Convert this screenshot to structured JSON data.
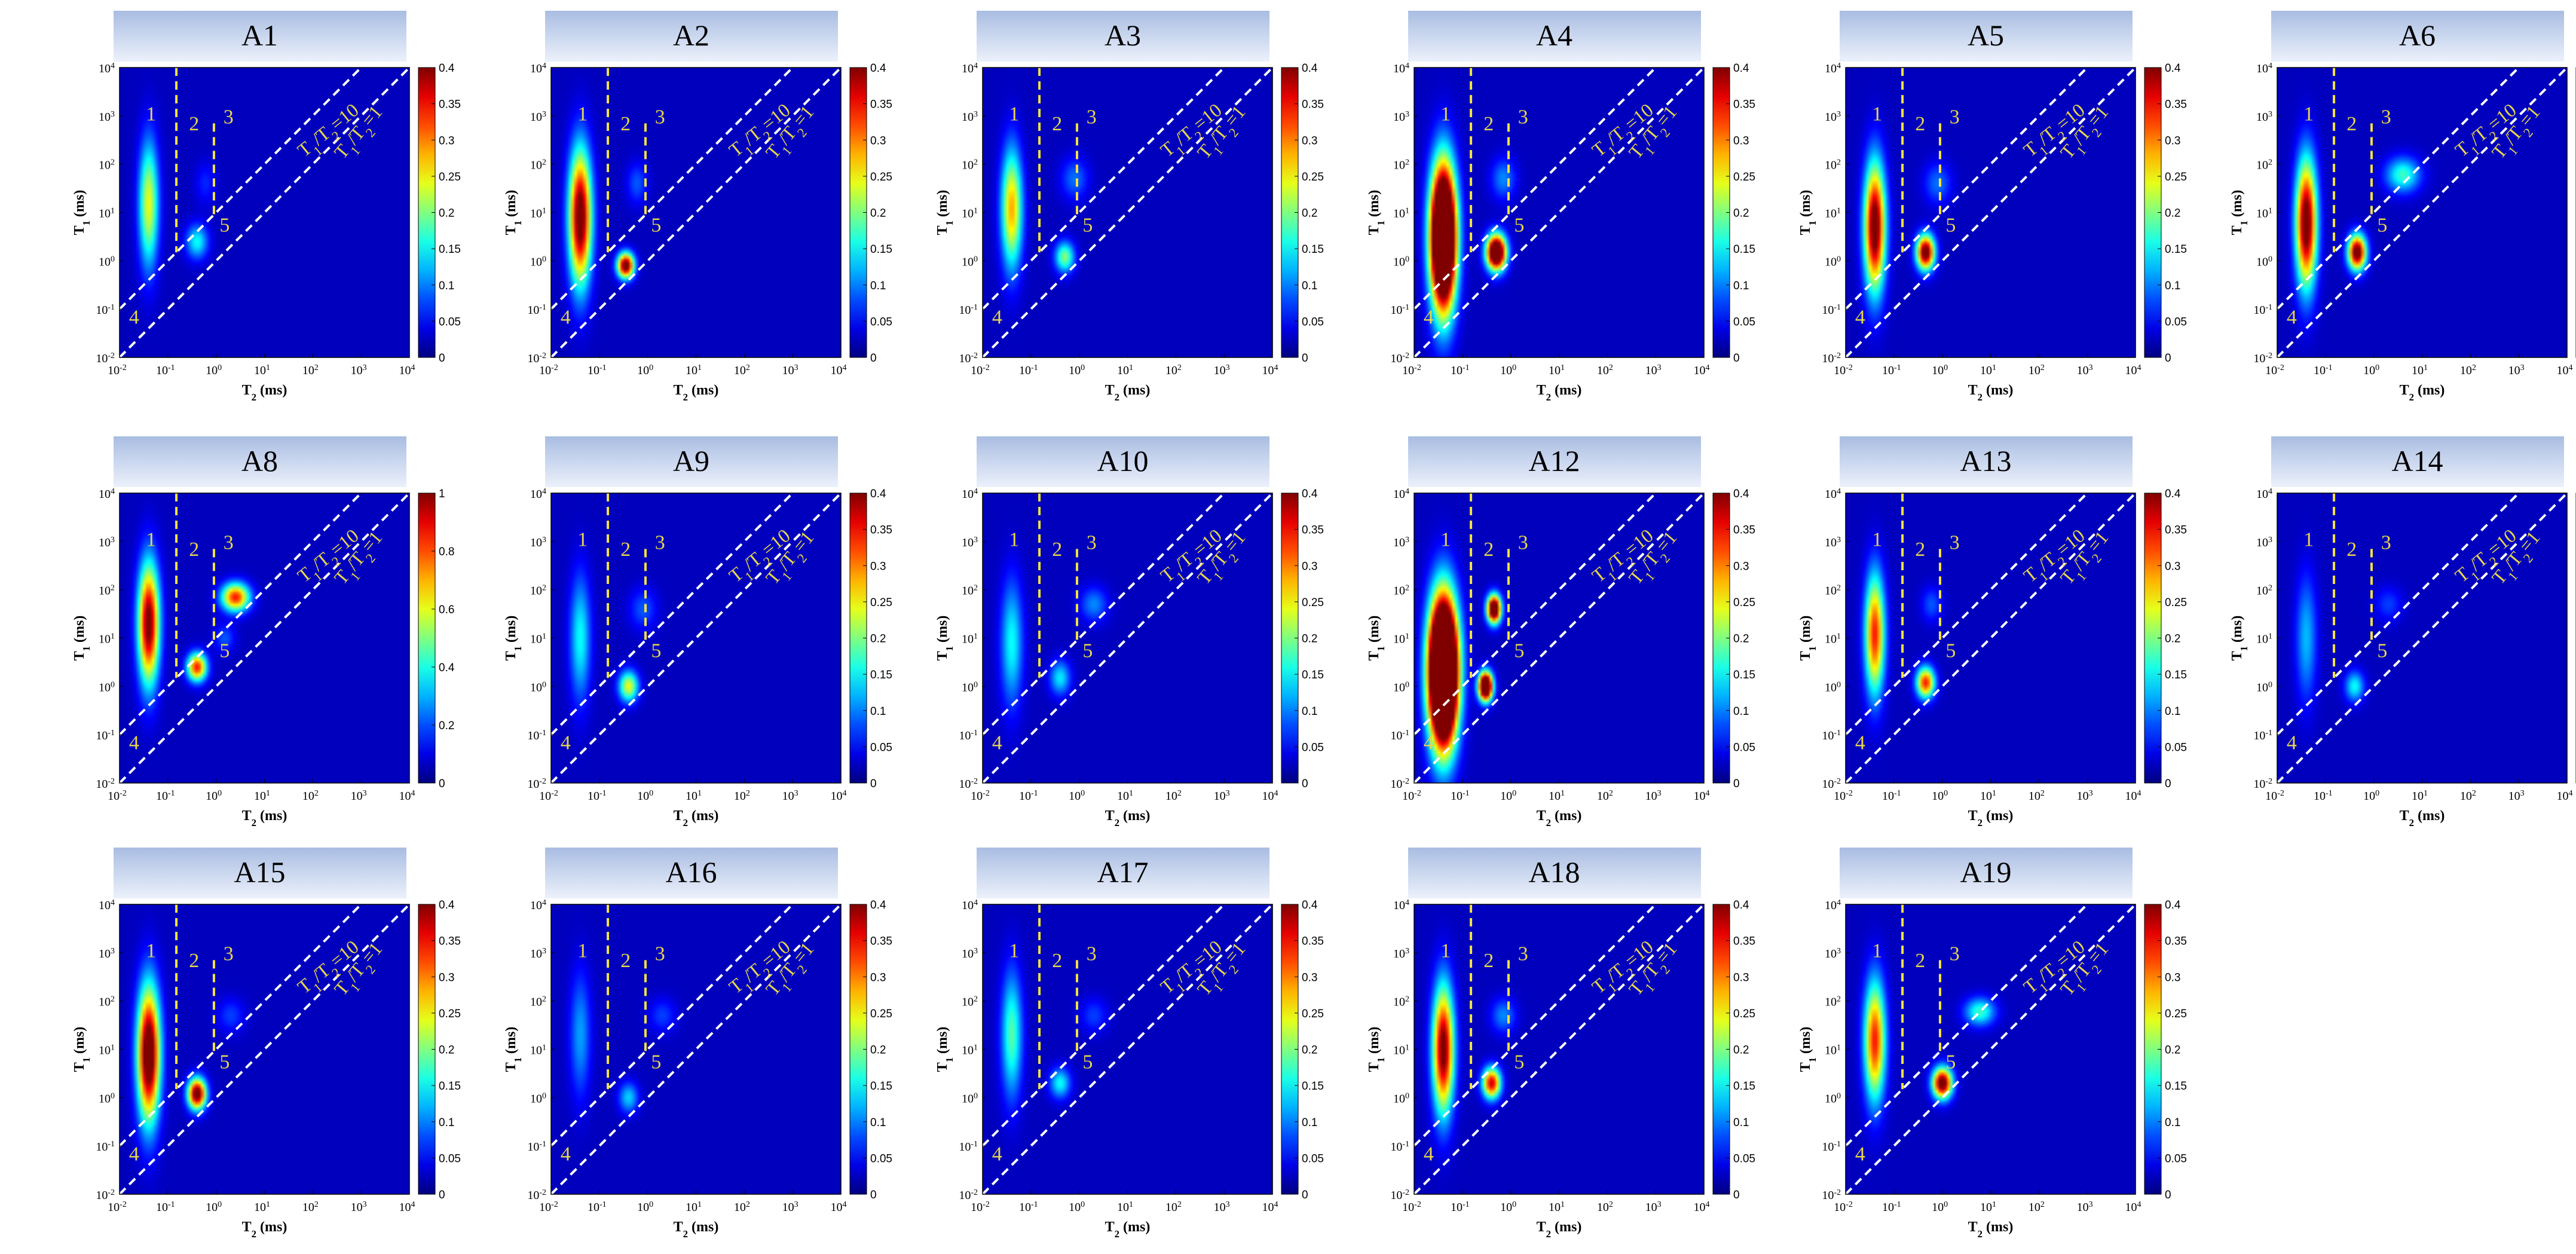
{
  "colors": {
    "background": "#00008f",
    "banner_top": "#a9bde2",
    "banner_bottom": "#ecf1fb",
    "dashed_yellow": "#f2e33c",
    "dashed_white": "#ffffff",
    "label_yellow": "#e8d64a"
  },
  "chart_data": {
    "type": "heatmap",
    "colormap": "jet",
    "xlabel": "T2 (ms)",
    "ylabel": "T1 (ms)",
    "xlabel_parts": {
      "main": "T",
      "sub": "2",
      "unit": " (ms)"
    },
    "ylabel_parts": {
      "main": "T",
      "sub": "1",
      "unit": " (ms)"
    },
    "x_scale": "log",
    "y_scale": "log",
    "xlim": [
      0.01,
      10000
    ],
    "ylim": [
      0.01,
      10000
    ],
    "axis_tick_exponents": [
      -2,
      -1,
      0,
      1,
      2,
      3,
      4
    ],
    "axis_tick_base": "10",
    "region_labels": [
      "1",
      "2",
      "3",
      "4",
      "5"
    ],
    "reference_lines": [
      {
        "label": "T1/T2=10",
        "parts": {
          "a": "T",
          "a_sub": "1",
          "sep": "/T",
          "b_sub": "2",
          "value": "=10"
        },
        "ratio": 10
      },
      {
        "label": "T1/T2=1",
        "parts": {
          "a": "T",
          "a_sub": "1",
          "sep": "/T",
          "b_sub": "2",
          "value": "=1"
        },
        "ratio": 1
      }
    ],
    "region_boundaries_T2": [
      0.15,
      0.9
    ],
    "colorbar_ticks_default": [
      "0",
      "0.05",
      "0.1",
      "0.15",
      "0.2",
      "0.25",
      "0.3",
      "0.35",
      "0.4"
    ],
    "colorbar_ticks_A8": [
      "0",
      "0.2",
      "0.4",
      "0.6",
      "0.8",
      "1"
    ],
    "panels": [
      {
        "name": "A1",
        "cmax": 0.4,
        "peaks": [
          {
            "t2": 0.04,
            "t1": 15,
            "sx": 0.14,
            "sy": 0.9,
            "a": 0.22
          },
          {
            "t2": 0.4,
            "t1": 2.5,
            "sx": 0.16,
            "sy": 0.25,
            "a": 0.13
          },
          {
            "t2": 0.6,
            "t1": 40,
            "sx": 0.15,
            "sy": 0.3,
            "a": 0.04
          }
        ]
      },
      {
        "name": "A2",
        "cmax": 0.4,
        "peaks": [
          {
            "t2": 0.04,
            "t1": 8,
            "sx": 0.16,
            "sy": 0.95,
            "a": 0.42
          },
          {
            "t2": 0.35,
            "t1": 0.8,
            "sx": 0.12,
            "sy": 0.18,
            "a": 0.42
          },
          {
            "t2": 0.6,
            "t1": 40,
            "sx": 0.15,
            "sy": 0.3,
            "a": 0.06
          }
        ]
      },
      {
        "name": "A3",
        "cmax": 0.4,
        "peaks": [
          {
            "t2": 0.04,
            "t1": 12,
            "sx": 0.15,
            "sy": 0.85,
            "a": 0.26
          },
          {
            "t2": 0.5,
            "t1": 1.2,
            "sx": 0.14,
            "sy": 0.22,
            "a": 0.18
          },
          {
            "t2": 0.8,
            "t1": 50,
            "sx": 0.2,
            "sy": 0.3,
            "a": 0.07
          }
        ]
      },
      {
        "name": "A4",
        "cmax": 0.4,
        "peaks": [
          {
            "t2": 0.04,
            "t1": 3,
            "sx": 0.18,
            "sy": 1.0,
            "a": 0.8
          },
          {
            "t2": 0.5,
            "t1": 1.5,
            "sx": 0.14,
            "sy": 0.25,
            "a": 0.55
          },
          {
            "t2": 0.7,
            "t1": 50,
            "sx": 0.18,
            "sy": 0.3,
            "a": 0.08
          }
        ]
      },
      {
        "name": "A5",
        "cmax": 0.4,
        "peaks": [
          {
            "t2": 0.04,
            "t1": 5,
            "sx": 0.15,
            "sy": 0.9,
            "a": 0.42
          },
          {
            "t2": 0.45,
            "t1": 1.5,
            "sx": 0.13,
            "sy": 0.25,
            "a": 0.42
          },
          {
            "t2": 0.8,
            "t1": 40,
            "sx": 0.2,
            "sy": 0.3,
            "a": 0.07
          }
        ]
      },
      {
        "name": "A6",
        "cmax": 0.4,
        "peaks": [
          {
            "t2": 0.04,
            "t1": 6,
            "sx": 0.15,
            "sy": 0.9,
            "a": 0.42
          },
          {
            "t2": 0.45,
            "t1": 1.5,
            "sx": 0.13,
            "sy": 0.25,
            "a": 0.42
          },
          {
            "t2": 4,
            "t1": 60,
            "sx": 0.25,
            "sy": 0.25,
            "a": 0.15
          }
        ]
      },
      {
        "name": "A8",
        "cmax": 1.0,
        "peaks": [
          {
            "t2": 0.04,
            "t1": 20,
            "sx": 0.15,
            "sy": 0.85,
            "a": 1.0
          },
          {
            "t2": 0.4,
            "t1": 2.5,
            "sx": 0.14,
            "sy": 0.2,
            "a": 0.8
          },
          {
            "t2": 2.5,
            "t1": 70,
            "sx": 0.2,
            "sy": 0.2,
            "a": 0.8
          },
          {
            "t2": 1.5,
            "t1": 10,
            "sx": 0.15,
            "sy": 0.2,
            "a": 0.15
          }
        ]
      },
      {
        "name": "A9",
        "cmax": 0.4,
        "peaks": [
          {
            "t2": 0.04,
            "t1": 10,
            "sx": 0.15,
            "sy": 0.9,
            "a": 0.13
          },
          {
            "t2": 0.4,
            "t1": 1,
            "sx": 0.14,
            "sy": 0.22,
            "a": 0.22
          },
          {
            "t2": 0.8,
            "t1": 40,
            "sx": 0.2,
            "sy": 0.3,
            "a": 0.06
          }
        ]
      },
      {
        "name": "A10",
        "cmax": 0.4,
        "peaks": [
          {
            "t2": 0.04,
            "t1": 8,
            "sx": 0.16,
            "sy": 0.9,
            "a": 0.13
          },
          {
            "t2": 0.4,
            "t1": 1.5,
            "sx": 0.15,
            "sy": 0.25,
            "a": 0.12
          },
          {
            "t2": 2,
            "t1": 50,
            "sx": 0.2,
            "sy": 0.25,
            "a": 0.08
          }
        ]
      },
      {
        "name": "A12",
        "cmax": 0.4,
        "peaks": [
          {
            "t2": 0.04,
            "t1": 2,
            "sx": 0.2,
            "sy": 1.0,
            "a": 1.0
          },
          {
            "t2": 0.3,
            "t1": 1,
            "sx": 0.1,
            "sy": 0.2,
            "a": 0.6
          },
          {
            "t2": 0.45,
            "t1": 40,
            "sx": 0.1,
            "sy": 0.2,
            "a": 0.5
          }
        ]
      },
      {
        "name": "A13",
        "cmax": 0.4,
        "peaks": [
          {
            "t2": 0.04,
            "t1": 12,
            "sx": 0.14,
            "sy": 0.85,
            "a": 0.32
          },
          {
            "t2": 0.45,
            "t1": 1.2,
            "sx": 0.13,
            "sy": 0.22,
            "a": 0.32
          },
          {
            "t2": 0.6,
            "t1": 50,
            "sx": 0.15,
            "sy": 0.25,
            "a": 0.06
          }
        ]
      },
      {
        "name": "A14",
        "cmax": 0.4,
        "peaks": [
          {
            "t2": 0.04,
            "t1": 10,
            "sx": 0.15,
            "sy": 0.9,
            "a": 0.1
          },
          {
            "t2": 0.4,
            "t1": 1,
            "sx": 0.14,
            "sy": 0.22,
            "a": 0.13
          },
          {
            "t2": 2,
            "t1": 50,
            "sx": 0.2,
            "sy": 0.25,
            "a": 0.05
          }
        ]
      },
      {
        "name": "A15",
        "cmax": 0.4,
        "peaks": [
          {
            "t2": 0.04,
            "t1": 8,
            "sx": 0.16,
            "sy": 0.95,
            "a": 0.45
          },
          {
            "t2": 0.4,
            "t1": 1.2,
            "sx": 0.13,
            "sy": 0.22,
            "a": 0.42
          },
          {
            "t2": 2,
            "t1": 50,
            "sx": 0.2,
            "sy": 0.25,
            "a": 0.05
          }
        ]
      },
      {
        "name": "A16",
        "cmax": 0.4,
        "peaks": [
          {
            "t2": 0.04,
            "t1": 20,
            "sx": 0.15,
            "sy": 0.9,
            "a": 0.09
          },
          {
            "t2": 0.4,
            "t1": 1,
            "sx": 0.14,
            "sy": 0.22,
            "a": 0.11
          },
          {
            "t2": 2,
            "t1": 50,
            "sx": 0.2,
            "sy": 0.25,
            "a": 0.05
          }
        ]
      },
      {
        "name": "A17",
        "cmax": 0.4,
        "peaks": [
          {
            "t2": 0.04,
            "t1": 20,
            "sx": 0.15,
            "sy": 0.9,
            "a": 0.16
          },
          {
            "t2": 0.4,
            "t1": 2,
            "sx": 0.15,
            "sy": 0.22,
            "a": 0.13
          },
          {
            "t2": 2,
            "t1": 50,
            "sx": 0.2,
            "sy": 0.25,
            "a": 0.05
          }
        ]
      },
      {
        "name": "A18",
        "cmax": 0.4,
        "peaks": [
          {
            "t2": 0.04,
            "t1": 10,
            "sx": 0.15,
            "sy": 0.9,
            "a": 0.4
          },
          {
            "t2": 0.4,
            "t1": 2,
            "sx": 0.13,
            "sy": 0.22,
            "a": 0.35
          },
          {
            "t2": 0.7,
            "t1": 50,
            "sx": 0.18,
            "sy": 0.25,
            "a": 0.08
          }
        ]
      },
      {
        "name": "A19",
        "cmax": 0.4,
        "peaks": [
          {
            "t2": 0.04,
            "t1": 15,
            "sx": 0.15,
            "sy": 0.85,
            "a": 0.32
          },
          {
            "t2": 1,
            "t1": 2,
            "sx": 0.14,
            "sy": 0.22,
            "a": 0.42
          },
          {
            "t2": 6,
            "t1": 60,
            "sx": 0.22,
            "sy": 0.2,
            "a": 0.15
          }
        ]
      }
    ]
  }
}
